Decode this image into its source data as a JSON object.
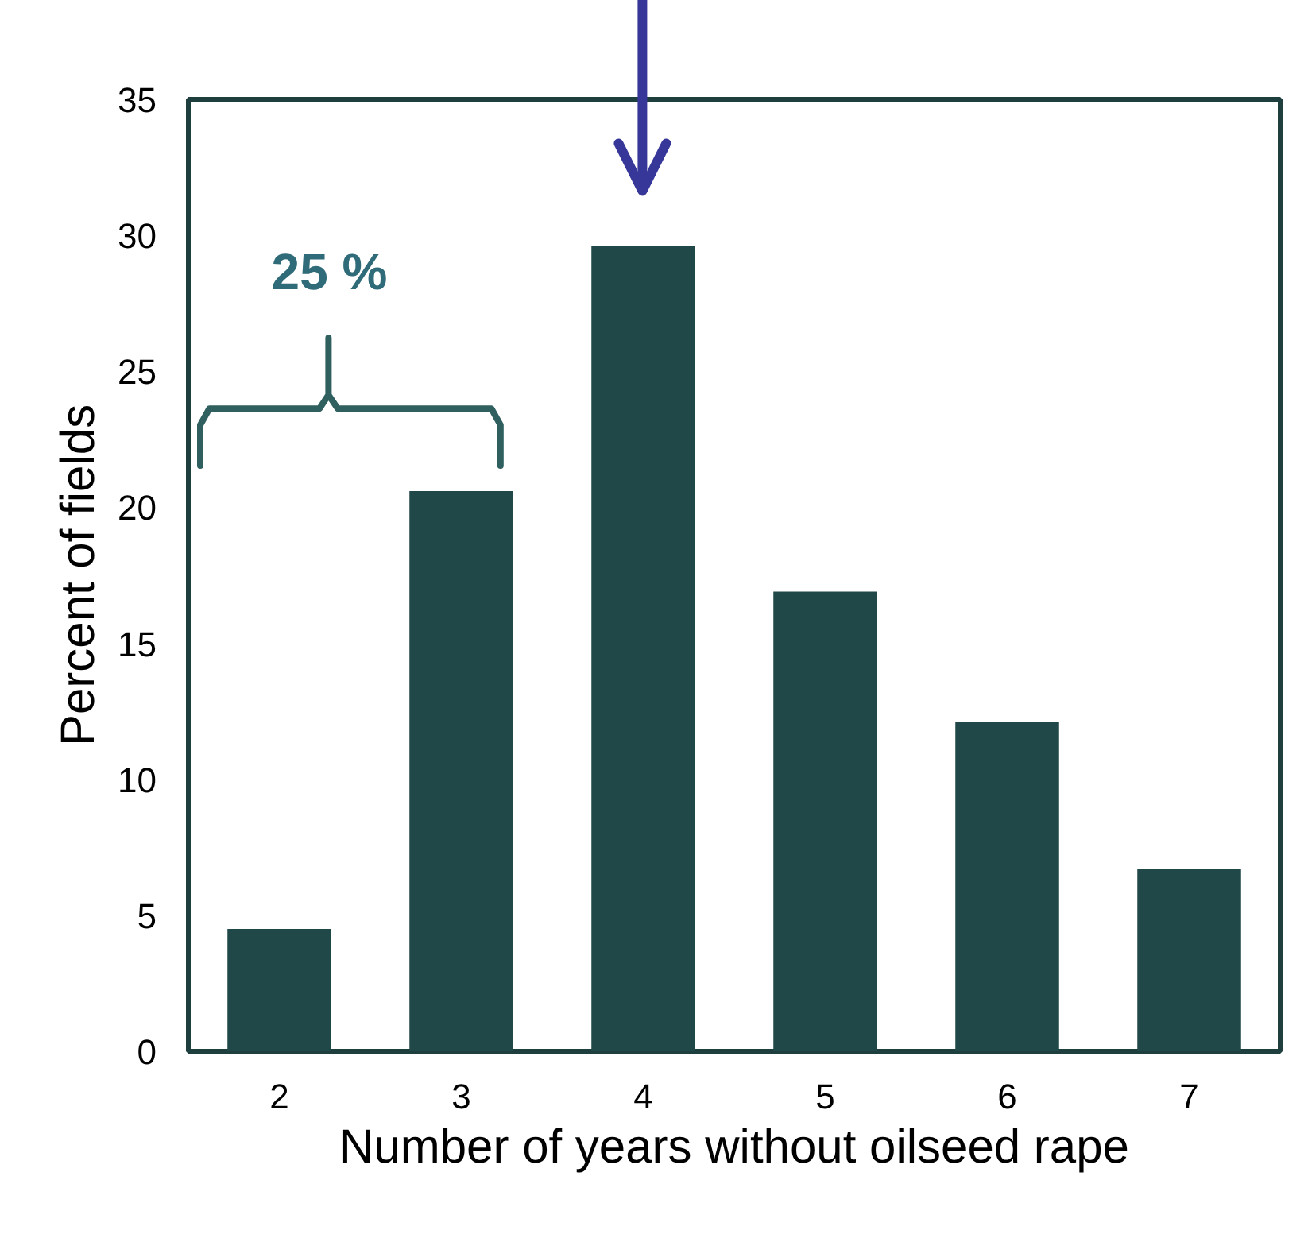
{
  "chart_data": {
    "type": "bar",
    "xlabel": "Number of years without oilseed rape",
    "ylabel": "Percent of fields",
    "categories": [
      "2",
      "3",
      "4",
      "5",
      "6",
      "7"
    ],
    "values": [
      4.5,
      20.6,
      29.6,
      16.9,
      12.1,
      6.7
    ],
    "color": "#214848",
    "ylim": [
      0,
      35
    ],
    "yticks": [
      0,
      5,
      10,
      15,
      20,
      25,
      30,
      35
    ],
    "grid": false,
    "annotations": [
      "25 %"
    ]
  }
}
